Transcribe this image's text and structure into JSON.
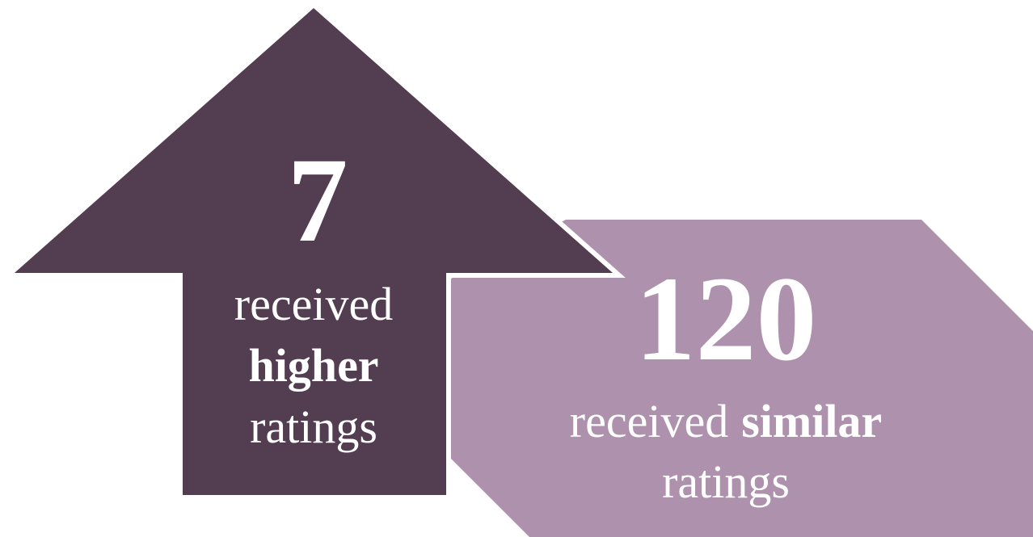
{
  "panels": [
    {
      "number": 7,
      "label": [
        "received",
        "higher",
        "ratings"
      ]
    },
    {
      "number": 120,
      "label": [
        "received",
        "similar",
        "ratings"
      ]
    }
  ]
}
